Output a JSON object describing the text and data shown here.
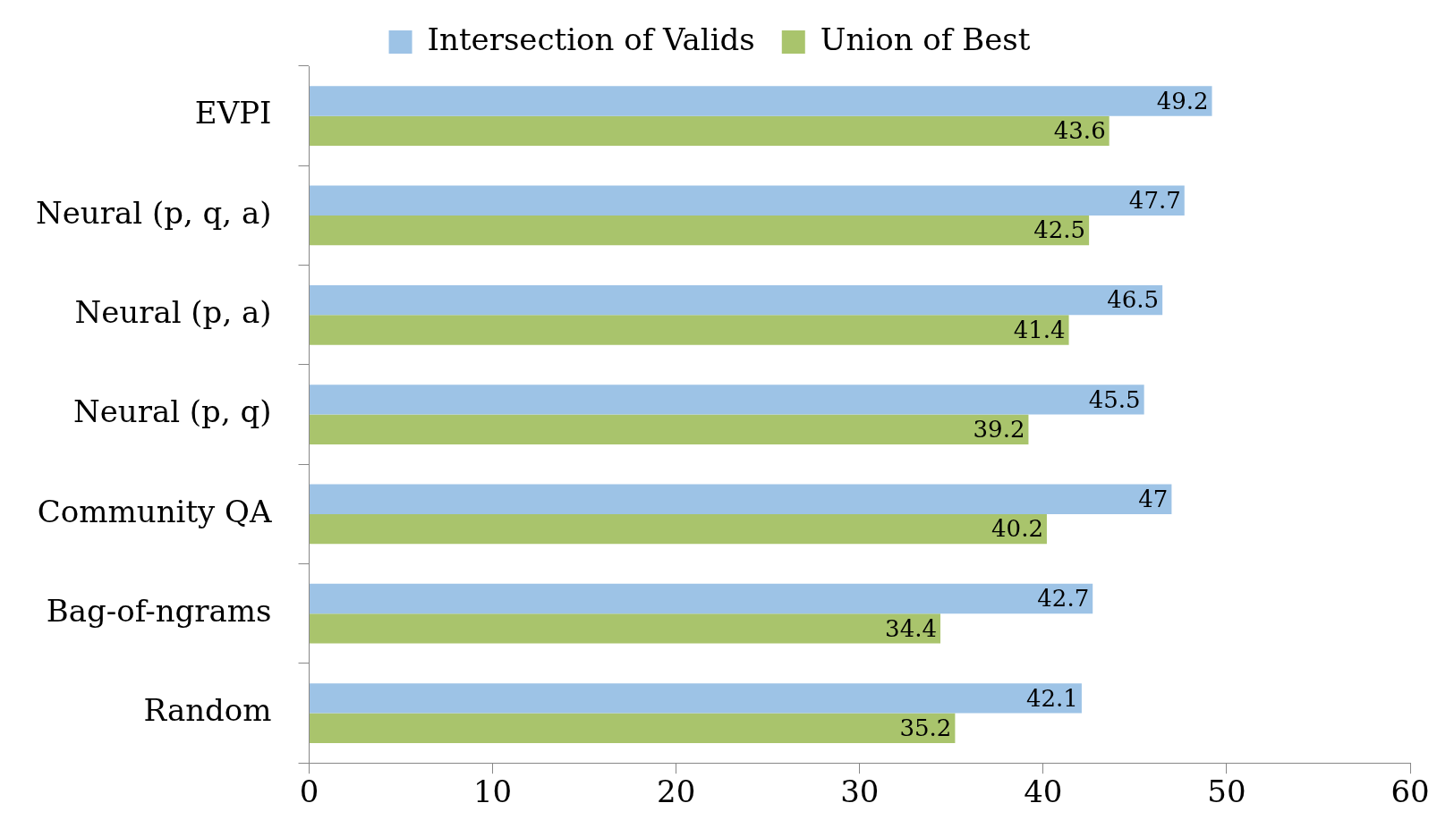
{
  "chart_data": {
    "type": "bar",
    "orientation": "horizontal",
    "categories": [
      "EVPI",
      "Neural (p, q, a)",
      "Neural (p, a)",
      "Neural (p, q)",
      "Community QA",
      "Bag-of-ngrams",
      "Random"
    ],
    "series": [
      {
        "name": "Intersection of Valids",
        "color": "#9dc3e6",
        "values": [
          49.2,
          47.7,
          46.5,
          45.5,
          47,
          42.7,
          42.1
        ]
      },
      {
        "name": "Union of Best",
        "color": "#a9c46c",
        "values": [
          43.6,
          42.5,
          41.4,
          39.2,
          40.2,
          34.4,
          35.2
        ]
      }
    ],
    "xlim": [
      0,
      60
    ],
    "xticks": [
      0,
      10,
      20,
      30,
      40,
      50,
      60
    ],
    "data_labels": true,
    "grid": false,
    "legend": "top"
  }
}
